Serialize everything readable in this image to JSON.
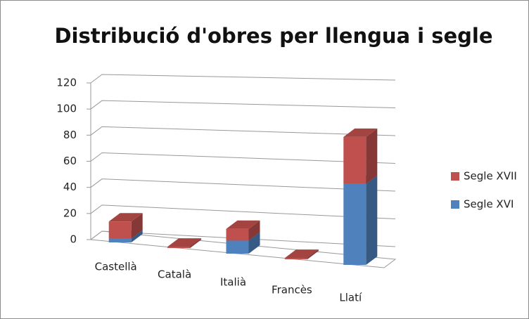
{
  "chart_data": {
    "type": "bar3d_stacked",
    "title": "Distribució d'obres per llengua i segle",
    "categories": [
      "Castellà",
      "Català",
      "Italià",
      "Francès",
      "Llatí"
    ],
    "series": [
      {
        "name": "Segle XVI",
        "color": "#4f81bd",
        "values": [
          3,
          0,
          10,
          0,
          62
        ]
      },
      {
        "name": "Segle XVII",
        "color": "#c0504d",
        "values": [
          13,
          1,
          9,
          1,
          36
        ]
      }
    ],
    "ylim": [
      0,
      120
    ],
    "yticks": [
      0,
      20,
      40,
      60,
      80,
      100,
      120
    ],
    "grid": true,
    "legend": "right"
  }
}
